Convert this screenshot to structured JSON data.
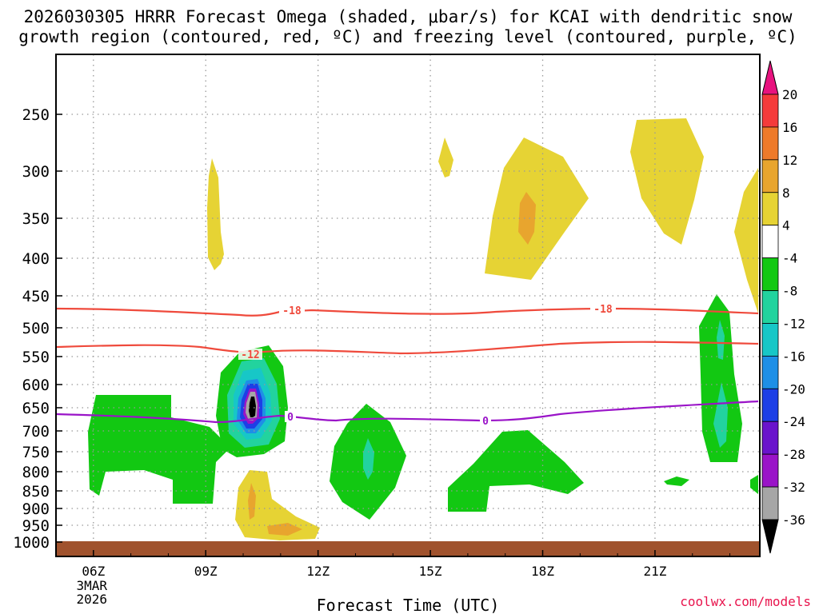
{
  "chart_data": {
    "type": "heatmap",
    "title_line1": "2026030305 HRRR Forecast Omega (shaded, μbar/s) for KCAI with dendritic snow",
    "title_line2": "growth region (contoured, red, ºC) and freezing level (contoured, purple, ºC)",
    "xlabel": "Forecast Time (UTC)",
    "credit": "coolwx.com/models",
    "x_range_hours": [
      5,
      23.8
    ],
    "x_ticks": [
      {
        "hour": 6,
        "label": "06Z",
        "sub1": "3MAR",
        "sub2": "2026"
      },
      {
        "hour": 9,
        "label": "09Z",
        "sub1": "",
        "sub2": ""
      },
      {
        "hour": 12,
        "label": "12Z",
        "sub1": "",
        "sub2": ""
      },
      {
        "hour": 15,
        "label": "15Z",
        "sub1": "",
        "sub2": ""
      },
      {
        "hour": 18,
        "label": "18Z",
        "sub1": "",
        "sub2": ""
      },
      {
        "hour": 21,
        "label": "21Z",
        "sub1": "",
        "sub2": ""
      }
    ],
    "y_ticks": [
      "250",
      "300",
      "350",
      "400",
      "450",
      "500",
      "550",
      "600",
      "650",
      "700",
      "750",
      "800",
      "850",
      "900",
      "950",
      "1000"
    ],
    "colorbar": {
      "labels": [
        "20",
        "16",
        "12",
        "8",
        "4",
        "-4",
        "-8",
        "-12",
        "-16",
        "-20",
        "-24",
        "-28",
        "-32",
        "-36"
      ],
      "top_arrow_color": "#e8137f",
      "bottom_arrow_color": "#000000",
      "colors": [
        "#f53b3b",
        "#ee7a2a",
        "#e8a52e",
        "#e6d334",
        "#ffffff",
        "#12c812",
        "#22d39e",
        "#17c7c7",
        "#1e8fe6",
        "#1d3fe6",
        "#6a14cc",
        "#9a14c8",
        "#a6a6a6"
      ]
    },
    "contour_labels": {
      "dgz_upper": "-18",
      "dgz_upper_2": "-18",
      "dgz_lower": "-12",
      "freezing": "0",
      "freezing_2": "0"
    },
    "colors": {
      "dgz": "#ef4a3c",
      "freezing": "#9a14c8",
      "ground": "#a0522d",
      "grid": "#999999"
    }
  }
}
